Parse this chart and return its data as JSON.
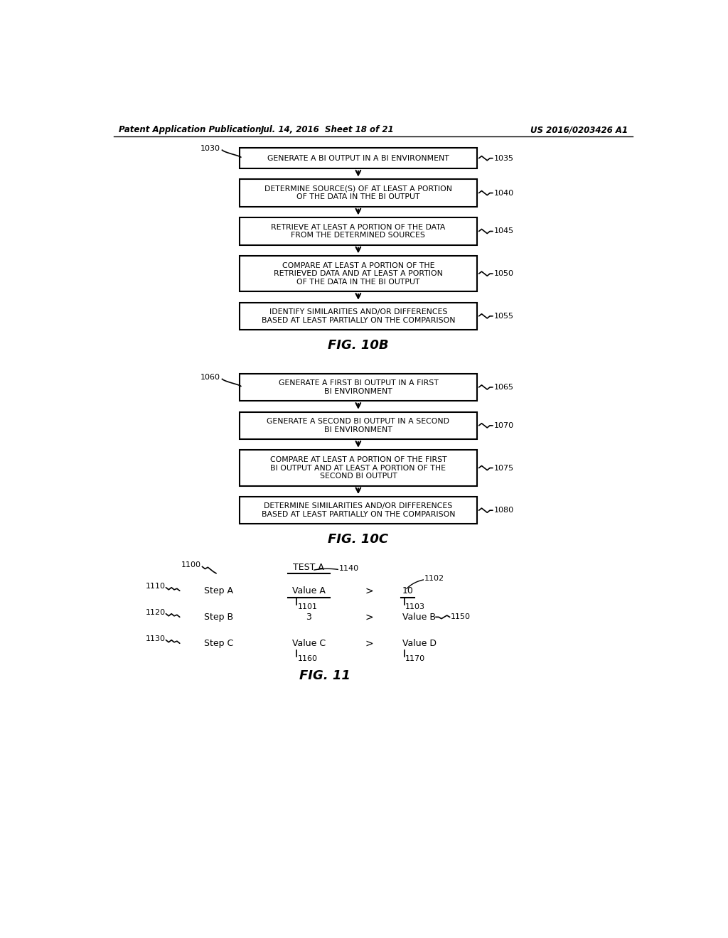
{
  "header_left": "Patent Application Publication",
  "header_mid": "Jul. 14, 2016  Sheet 18 of 21",
  "header_right": "US 2016/0203426 A1",
  "fig10b_label": "FIG. 10B",
  "fig10b_ref": "1030",
  "fig10b_boxes": [
    {
      "label": "GENERATE A BI OUTPUT IN A BI ENVIRONMENT",
      "ref": "1035"
    },
    {
      "label": "DETERMINE SOURCE(S) OF AT LEAST A PORTION\nOF THE DATA IN THE BI OUTPUT",
      "ref": "1040"
    },
    {
      "label": "RETRIEVE AT LEAST A PORTION OF THE DATA\nFROM THE DETERMINED SOURCES",
      "ref": "1045"
    },
    {
      "label": "COMPARE AT LEAST A PORTION OF THE\nRETRIEVED DATA AND AT LEAST A PORTION\nOF THE DATA IN THE BI OUTPUT",
      "ref": "1050"
    },
    {
      "label": "IDENTIFY SIMILARITIES AND/OR DIFFERENCES\nBASED AT LEAST PARTIALLY ON THE COMPARISON",
      "ref": "1055"
    }
  ],
  "fig10c_label": "FIG. 10C",
  "fig10c_ref": "1060",
  "fig10c_boxes": [
    {
      "label": "GENERATE A FIRST BI OUTPUT IN A FIRST\nBI ENVIRONMENT",
      "ref": "1065"
    },
    {
      "label": "GENERATE A SECOND BI OUTPUT IN A SECOND\nBI ENVIRONMENT",
      "ref": "1070"
    },
    {
      "label": "COMPARE AT LEAST A PORTION OF THE FIRST\nBI OUTPUT AND AT LEAST A PORTION OF THE\nSECOND BI OUTPUT",
      "ref": "1075"
    },
    {
      "label": "DETERMINE SIMILARITIES AND/OR DIFFERENCES\nBASED AT LEAST PARTIALLY ON THE COMPARISON",
      "ref": "1080"
    }
  ],
  "fig11_label": "FIG. 11",
  "fig11_ref": "1100",
  "fig11_steps": [
    {
      "ref": "1110",
      "label": "Step A"
    },
    {
      "ref": "1120",
      "label": "Step B"
    },
    {
      "ref": "1130",
      "label": "Step C"
    }
  ],
  "fig11_col1_header": "TEST A",
  "fig11_col1_header_ref": "1140",
  "fig11_col1_header_ref2": "1101",
  "fig11_col1_values": [
    "Value A",
    "3",
    "Value C"
  ],
  "fig11_col1_value_ref": "1160",
  "fig11_col2_values": [
    "10",
    "Value B",
    "Value D"
  ],
  "fig11_col2_refs": [
    "1102",
    "1150",
    ""
  ],
  "fig11_col2_subrefs": [
    "1103",
    "",
    "1170"
  ]
}
